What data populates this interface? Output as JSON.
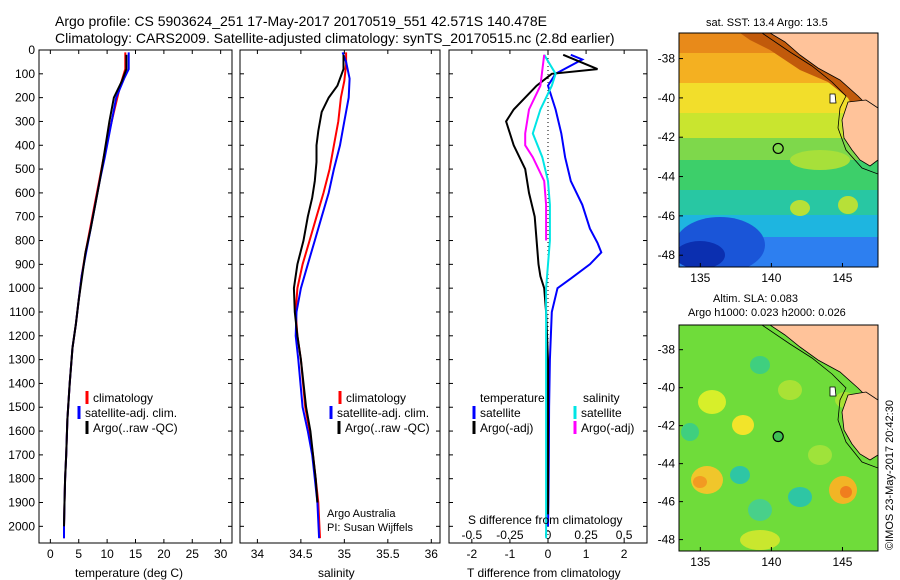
{
  "header": {
    "line1": "Argo profile: CS 5903624_251 17-May-2017 20170519_551 42.571S 140.478E",
    "line2": "Climatology: CARS2009. Satellite-adjusted climatology: synTS_20170515.nc (2.8d earlier)"
  },
  "credit": {
    "institution": "Argo Australia",
    "pi": "PI: Susan Wijffels",
    "stamp": "©IMOS 23-May-2017 20:42:30"
  },
  "colors": {
    "climatology": "#ff0000",
    "satellite": "#0000ff",
    "argo": "#000000",
    "sat_salinity": "#00e5e5",
    "argo_salinity": "#ff00ff"
  },
  "chart_data": [
    {
      "type": "line",
      "xlabel": "temperature (deg C)",
      "ylabel": "",
      "xlim": [
        -2,
        32
      ],
      "ylim": [
        2070,
        0
      ],
      "x_ticks": [
        0,
        5,
        10,
        15,
        20,
        25,
        30
      ],
      "y_ticks": [
        0,
        100,
        200,
        300,
        400,
        500,
        600,
        700,
        800,
        900,
        1000,
        1100,
        1200,
        1300,
        1400,
        1500,
        1600,
        1700,
        1800,
        1900,
        2000
      ],
      "legend": [
        "climatology",
        "satellite-adj. clim.",
        "Argo(..raw -QC)"
      ],
      "series": [
        {
          "name": "climatology",
          "color": "#ff0000",
          "x": [
            13.2,
            13.2,
            12.3,
            11.3,
            10.3,
            9.4,
            8.6,
            7.8,
            7.0,
            6.2,
            5.5,
            5.0,
            4.5,
            3.9,
            3.4,
            3.0,
            2.8,
            2.6,
            2.5,
            2.4,
            2.4
          ],
          "y": [
            10,
            80,
            150,
            250,
            350,
            450,
            550,
            650,
            750,
            850,
            950,
            1050,
            1150,
            1250,
            1400,
            1550,
            1700,
            1800,
            1900,
            2000,
            2050
          ]
        },
        {
          "name": "satellite-adj. clim.",
          "color": "#0000ff",
          "x": [
            13.8,
            13.8,
            13.0,
            11.6,
            10.8,
            9.6,
            8.7,
            7.9,
            7.1,
            6.3,
            5.5,
            5.0,
            4.5,
            3.9,
            3.4,
            3.0,
            2.8,
            2.6,
            2.5,
            2.4,
            2.4
          ],
          "y": [
            10,
            80,
            120,
            200,
            300,
            450,
            550,
            650,
            750,
            850,
            950,
            1050,
            1150,
            1250,
            1400,
            1550,
            1700,
            1800,
            1900,
            2000,
            2050
          ]
        },
        {
          "name": "Argo(..raw -QC)",
          "color": "#000000",
          "x": [
            13.4,
            13.4,
            12.6,
            11.2,
            10.4,
            9.4,
            8.7,
            7.9,
            7.1,
            6.2,
            5.6,
            5.0,
            4.5,
            3.9,
            3.4,
            3.0,
            2.8,
            2.6,
            2.5,
            2.4
          ],
          "y": [
            20,
            80,
            130,
            200,
            300,
            450,
            550,
            650,
            750,
            850,
            950,
            1050,
            1150,
            1250,
            1400,
            1550,
            1700,
            1800,
            1900,
            2000
          ]
        }
      ]
    },
    {
      "type": "line",
      "xlabel": "salinity",
      "ylabel": "",
      "xlim": [
        33.8,
        36.1
      ],
      "ylim": [
        2070,
        0
      ],
      "x_ticks": [
        34,
        34.5,
        35,
        35.5,
        36
      ],
      "y_ticks": [
        0,
        100,
        200,
        300,
        400,
        500,
        600,
        700,
        800,
        900,
        1000,
        1100,
        1200,
        1300,
        1400,
        1500,
        1600,
        1700,
        1800,
        1900,
        2000
      ],
      "legend": [
        "climatology",
        "satellite-adj. clim.",
        "Argo(..raw -QC)"
      ],
      "series": [
        {
          "name": "climatology",
          "color": "#ff0000",
          "x": [
            35.02,
            35.02,
            35.0,
            34.96,
            34.93,
            34.88,
            34.83,
            34.76,
            34.68,
            34.6,
            34.52,
            34.46,
            34.44,
            34.46,
            34.5,
            34.55,
            34.6,
            34.64,
            34.67,
            34.7,
            34.72
          ],
          "y": [
            10,
            60,
            130,
            200,
            300,
            400,
            500,
            600,
            700,
            800,
            900,
            1000,
            1100,
            1200,
            1300,
            1500,
            1600,
            1700,
            1800,
            1900,
            2050
          ]
        },
        {
          "name": "satellite-adj. clim.",
          "color": "#0000ff",
          "x": [
            34.98,
            35.02,
            35.06,
            35.05,
            35.0,
            34.95,
            34.88,
            34.82,
            34.74,
            34.66,
            34.58,
            34.5,
            34.45,
            34.44,
            34.47,
            34.52,
            34.58,
            34.63,
            34.66,
            34.69,
            34.71
          ],
          "y": [
            10,
            50,
            120,
            200,
            300,
            400,
            500,
            600,
            700,
            800,
            900,
            1000,
            1100,
            1200,
            1300,
            1500,
            1600,
            1700,
            1800,
            1900,
            2050
          ]
        },
        {
          "name": "Argo(..raw -QC)",
          "color": "#000000",
          "x": [
            34.99,
            34.99,
            34.92,
            34.82,
            34.74,
            34.7,
            34.68,
            34.68,
            34.66,
            34.63,
            34.58,
            34.53,
            34.46,
            34.42,
            34.43,
            34.46,
            34.5,
            34.56,
            34.61,
            34.64,
            34.67,
            34.69
          ],
          "y": [
            20,
            80,
            150,
            200,
            260,
            340,
            400,
            470,
            550,
            620,
            700,
            800,
            900,
            1000,
            1100,
            1200,
            1300,
            1500,
            1600,
            1700,
            1800,
            1900
          ]
        }
      ]
    },
    {
      "type": "line",
      "xlabel": "T difference from climatology",
      "top_label": "S difference from climatology",
      "xlim": [
        -2.6,
        2.6
      ],
      "ylim": [
        2070,
        0
      ],
      "x_ticks": [
        -2,
        -1,
        0,
        1,
        2
      ],
      "top_ticks": [
        "-0.5",
        "-0.25",
        "0",
        "0.25",
        "0.5"
      ],
      "y_ticks": [
        0,
        100,
        200,
        300,
        400,
        500,
        600,
        700,
        800,
        900,
        1000,
        1100,
        1200,
        1300,
        1400,
        1500,
        1600,
        1700,
        1800,
        1900,
        2000
      ],
      "legend_temperature_title": "temperature",
      "legend_salinity_title": "salinity",
      "legend": [
        "satellite",
        "Argo(-adj)",
        "satellite",
        "Argo(-adj)"
      ],
      "series": [
        {
          "name": "satellite",
          "group": "temperature",
          "color": "#0000ff",
          "x": [
            0.6,
            0.9,
            0.2,
            0.0,
            0.2,
            0.35,
            0.45,
            0.6,
            0.9,
            1.1,
            1.3,
            1.4,
            1.1,
            0.6,
            0.25,
            0.1,
            0.05,
            0.03,
            0.02,
            0.01,
            0.0
          ],
          "y": [
            20,
            40,
            100,
            150,
            250,
            350,
            450,
            550,
            650,
            750,
            810,
            850,
            900,
            960,
            1000,
            1100,
            1300,
            1500,
            1700,
            1900,
            2000
          ]
        },
        {
          "name": "Argo(-adj)",
          "group": "temperature",
          "color": "#000000",
          "x": [
            0.4,
            1.3,
            0.1,
            -0.3,
            -0.9,
            -1.1,
            -0.9,
            -0.6,
            -0.5,
            -0.35,
            -0.3,
            -0.25,
            -0.2,
            -0.1,
            -0.05,
            0.0,
            0.0,
            0.0,
            0.0
          ],
          "y": [
            20,
            80,
            100,
            150,
            250,
            300,
            400,
            500,
            600,
            700,
            800,
            900,
            950,
            1000,
            1100,
            1300,
            1500,
            1800,
            1950
          ]
        },
        {
          "name": "satellite",
          "group": "salinity",
          "color": "#00e5e5",
          "x": [
            -0.1,
            0.2,
            0.1,
            -0.2,
            -0.4,
            -0.15,
            0.0,
            0.05,
            0.05,
            0.0,
            -0.05,
            -0.05,
            -0.05,
            -0.05,
            -0.05
          ],
          "y": [
            20,
            100,
            150,
            250,
            350,
            450,
            550,
            650,
            800,
            900,
            1000,
            1300,
            1600,
            1800,
            2050
          ]
        },
        {
          "name": "Argo(-adj)",
          "group": "salinity",
          "color": "#ff00ff",
          "x": [
            -0.1,
            -0.2,
            -0.5,
            -0.6,
            -0.6,
            -0.4,
            -0.1,
            -0.05,
            -0.05,
            -0.05
          ],
          "y": [
            20,
            150,
            250,
            350,
            400,
            450,
            550,
            650,
            750,
            800
          ]
        }
      ]
    },
    {
      "type": "heatmap",
      "title": "sat. SST: 13.4  Argo: 13.5",
      "xlim": [
        133.5,
        147.5
      ],
      "ylim": [
        -48.6,
        -36.7
      ],
      "x_ticks": [
        135,
        140,
        145
      ],
      "y_ticks": [
        -38,
        -40,
        -42,
        -44,
        -46,
        -48
      ],
      "marker": {
        "lon": 140.478,
        "lat": -42.571
      }
    },
    {
      "type": "heatmap",
      "title_line1": "Altim. SLA: 0.083",
      "title_line2": "Argo h1000: 0.023 h2000: 0.026",
      "xlim": [
        133.5,
        147.5
      ],
      "ylim": [
        -48.6,
        -36.7
      ],
      "x_ticks": [
        135,
        140,
        145
      ],
      "y_ticks": [
        -38,
        -40,
        -42,
        -44,
        -46,
        -48
      ],
      "marker": {
        "lon": 140.478,
        "lat": -42.571
      }
    }
  ]
}
